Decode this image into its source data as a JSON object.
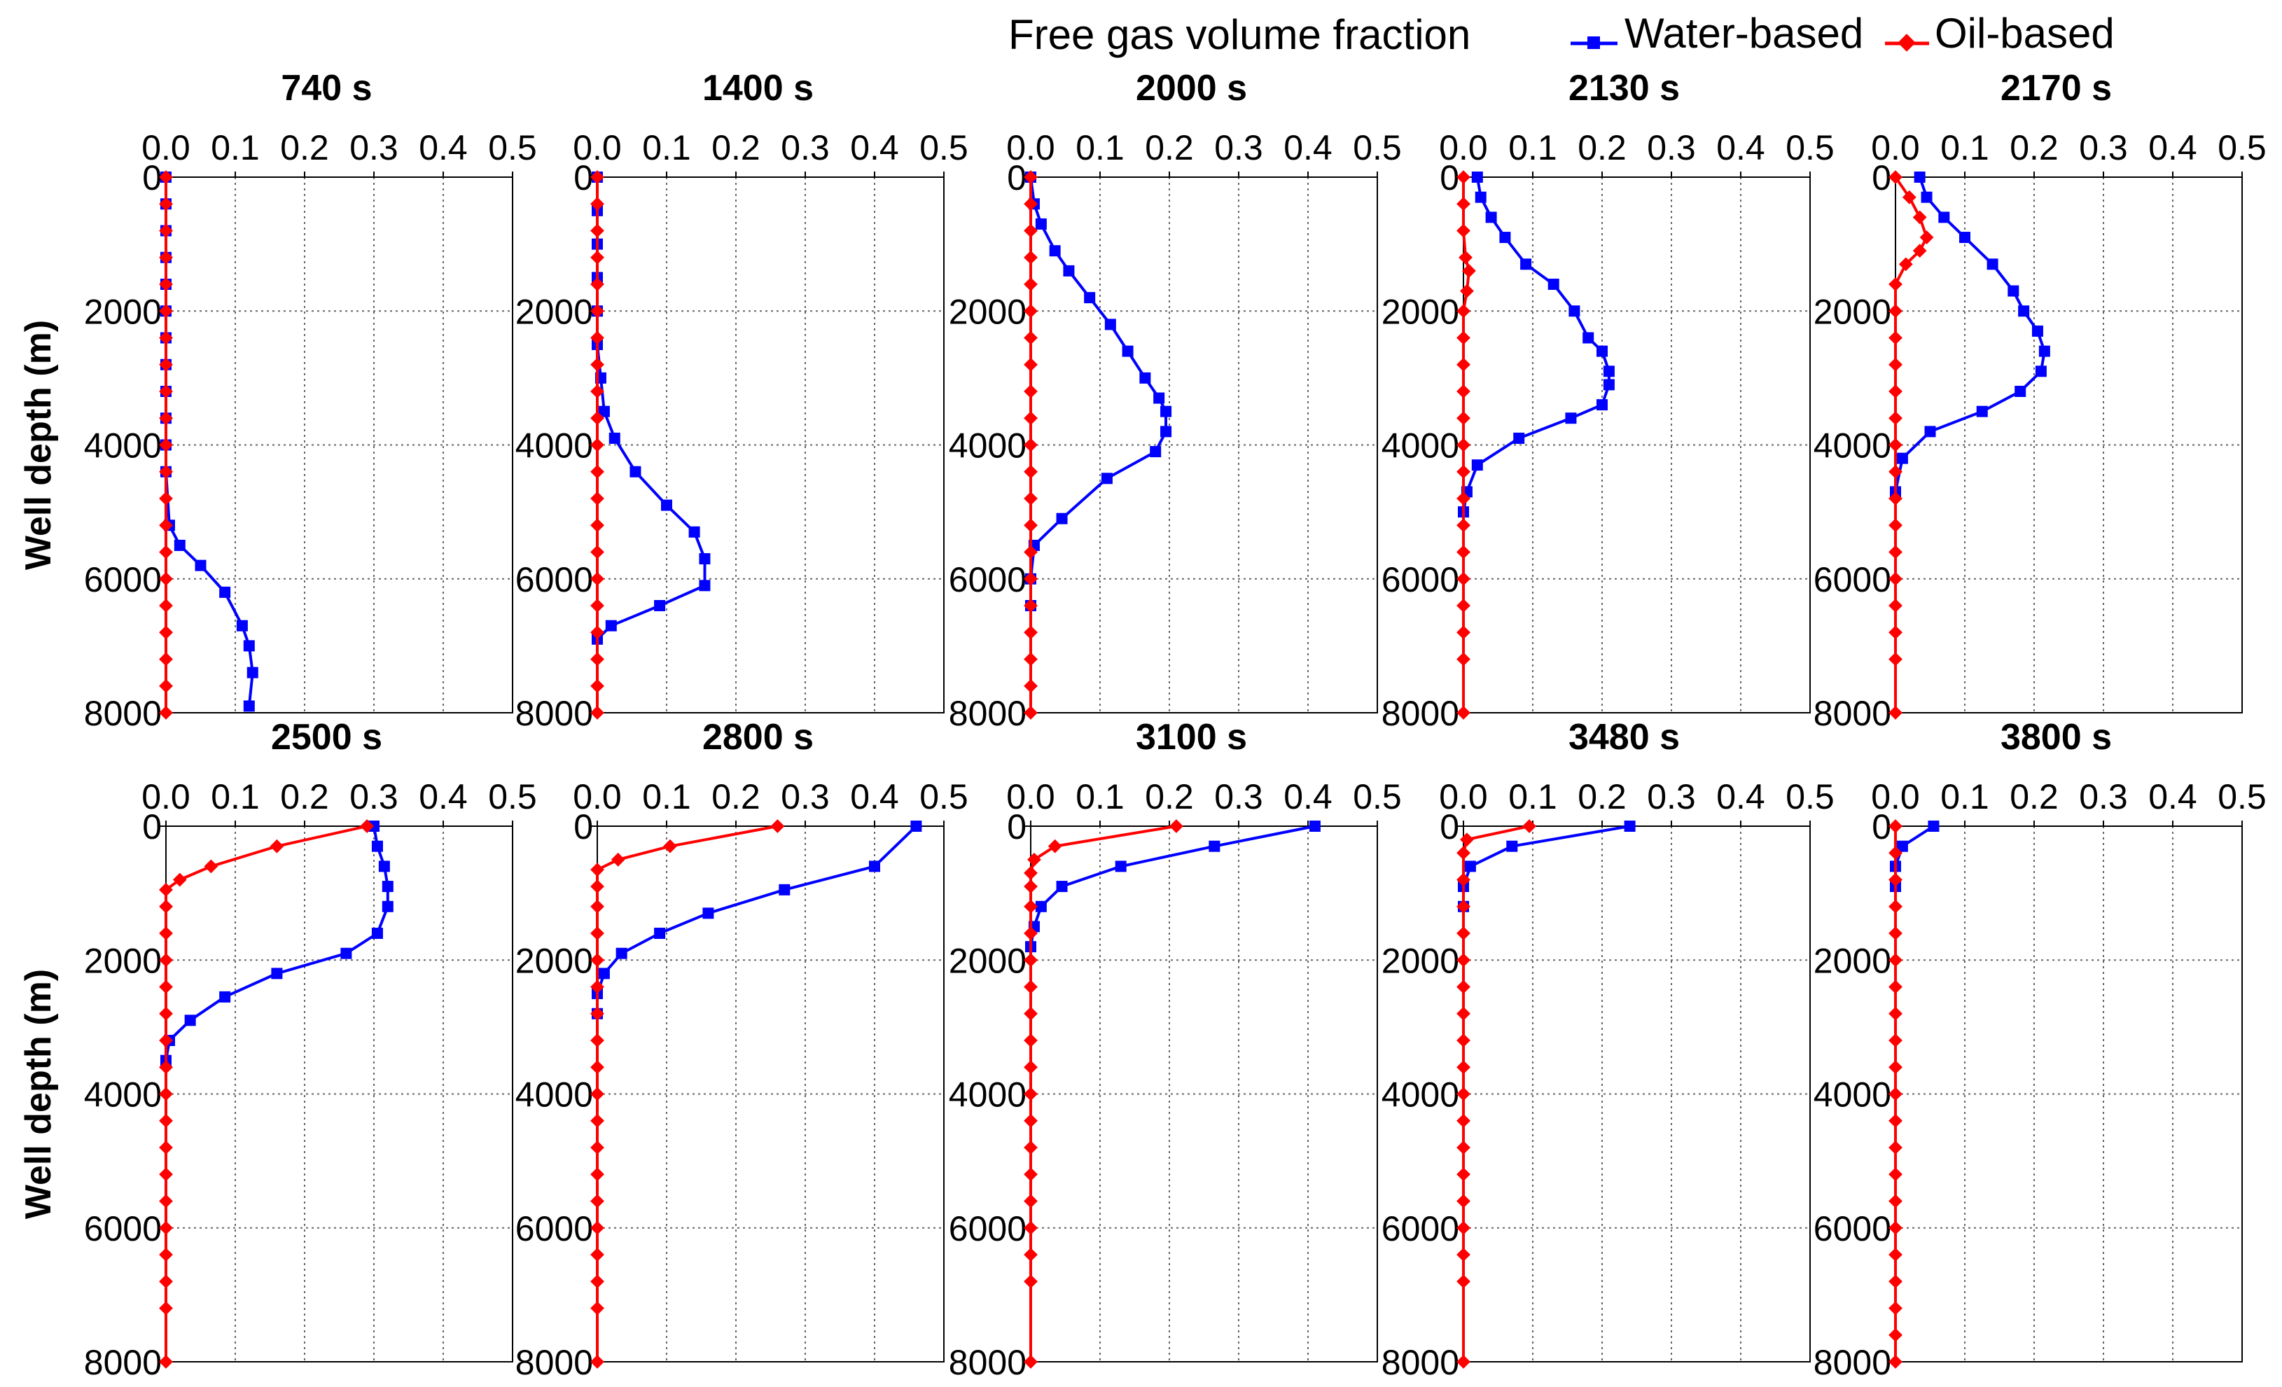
{
  "chart_data": {
    "type": "line",
    "legend": {
      "title": "Free gas volume fraction",
      "placement": "top-right",
      "entries": [
        {
          "name": "Water-based",
          "color": "#0000ff",
          "marker": "square"
        },
        {
          "name": "Oil-based",
          "color": "#ff0000",
          "marker": "diamond"
        }
      ]
    },
    "ylabel": "Well depth (m)",
    "x_axis": {
      "range": [
        0.0,
        0.5
      ],
      "ticks": [
        "0.0",
        "0.1",
        "0.2",
        "0.3",
        "0.4",
        "0.5"
      ],
      "position": "top"
    },
    "y_axis": {
      "range": [
        0,
        8000
      ],
      "inverted": true,
      "ticks": [
        "0",
        "2000",
        "4000",
        "6000",
        "8000"
      ]
    },
    "grid": true,
    "panels": [
      {
        "title": "740 s",
        "series": [
          {
            "name": "Water-based",
            "x": [
              0,
              0,
              0,
              0,
              0,
              0,
              0,
              0,
              0,
              0,
              0,
              0,
              0.005,
              0.02,
              0.05,
              0.085,
              0.11,
              0.12,
              0.125,
              0.12
            ],
            "y": [
              0,
              400,
              800,
              1200,
              1600,
              2000,
              2400,
              2800,
              3200,
              3600,
              4000,
              4400,
              5200,
              5500,
              5800,
              6200,
              6700,
              7000,
              7400,
              7900
            ]
          },
          {
            "name": "Oil-based",
            "x": [
              0,
              0,
              0,
              0,
              0,
              0,
              0,
              0,
              0,
              0,
              0,
              0,
              0,
              0,
              0,
              0,
              0,
              0,
              0,
              0,
              0
            ],
            "y": [
              0,
              400,
              800,
              1200,
              1600,
              2000,
              2400,
              2800,
              3200,
              3600,
              4000,
              4400,
              4800,
              5200,
              5600,
              6000,
              6400,
              6800,
              7200,
              7600,
              8000
            ]
          }
        ]
      },
      {
        "title": "1400 s",
        "series": [
          {
            "name": "Water-based",
            "x": [
              0,
              0,
              0,
              0,
              0,
              0,
              0.005,
              0.01,
              0.025,
              0.055,
              0.1,
              0.14,
              0.155,
              0.155,
              0.09,
              0.02,
              0
            ],
            "y": [
              0,
              500,
              1000,
              1500,
              2000,
              2500,
              3000,
              3500,
              3900,
              4400,
              4900,
              5300,
              5700,
              6100,
              6400,
              6700,
              6900
            ]
          },
          {
            "name": "Oil-based",
            "x": [
              0,
              0,
              0,
              0,
              0,
              0,
              0,
              0,
              0,
              0,
              0,
              0,
              0,
              0,
              0,
              0,
              0,
              0,
              0,
              0,
              0
            ],
            "y": [
              0,
              400,
              800,
              1200,
              1600,
              2000,
              2400,
              2800,
              3200,
              3600,
              4000,
              4400,
              4800,
              5200,
              5600,
              6000,
              6400,
              6800,
              7200,
              7600,
              8000
            ]
          }
        ]
      },
      {
        "title": "2000 s",
        "series": [
          {
            "name": "Water-based",
            "x": [
              0,
              0.005,
              0.015,
              0.035,
              0.055,
              0.085,
              0.115,
              0.14,
              0.165,
              0.185,
              0.195,
              0.195,
              0.18,
              0.11,
              0.045,
              0.005,
              0,
              0
            ],
            "y": [
              0,
              400,
              700,
              1100,
              1400,
              1800,
              2200,
              2600,
              3000,
              3300,
              3500,
              3800,
              4100,
              4500,
              5100,
              5500,
              6000,
              6400
            ]
          },
          {
            "name": "Oil-based",
            "x": [
              0,
              0,
              0,
              0,
              0,
              0,
              0,
              0,
              0,
              0,
              0,
              0,
              0,
              0,
              0,
              0,
              0,
              0,
              0,
              0,
              0
            ],
            "y": [
              0,
              400,
              800,
              1200,
              1600,
              2000,
              2400,
              2800,
              3200,
              3600,
              4000,
              4400,
              4800,
              5200,
              5600,
              6000,
              6400,
              6800,
              7200,
              7600,
              8000
            ]
          }
        ]
      },
      {
        "title": "2130 s",
        "series": [
          {
            "name": "Water-based",
            "x": [
              0.02,
              0.025,
              0.04,
              0.06,
              0.09,
              0.13,
              0.16,
              0.18,
              0.2,
              0.21,
              0.21,
              0.2,
              0.155,
              0.08,
              0.02,
              0.005,
              0
            ],
            "y": [
              0,
              300,
              600,
              900,
              1300,
              1600,
              2000,
              2400,
              2600,
              2900,
              3100,
              3400,
              3600,
              3900,
              4300,
              4700,
              5000
            ]
          },
          {
            "name": "Oil-based",
            "x": [
              0,
              0,
              0,
              0.003,
              0.008,
              0.005,
              0,
              0,
              0,
              0,
              0,
              0,
              0,
              0,
              0,
              0,
              0,
              0,
              0,
              0,
              0
            ],
            "y": [
              0,
              400,
              800,
              1200,
              1400,
              1700,
              2000,
              2400,
              2800,
              3200,
              3600,
              4000,
              4400,
              4800,
              5200,
              5600,
              6000,
              6400,
              6800,
              7200,
              8000
            ]
          }
        ]
      },
      {
        "title": "2170 s",
        "series": [
          {
            "name": "Water-based",
            "x": [
              0.035,
              0.045,
              0.07,
              0.1,
              0.14,
              0.17,
              0.185,
              0.205,
              0.215,
              0.21,
              0.18,
              0.125,
              0.05,
              0.01,
              0
            ],
            "y": [
              0,
              300,
              600,
              900,
              1300,
              1700,
              2000,
              2300,
              2600,
              2900,
              3200,
              3500,
              3800,
              4200,
              4700
            ]
          },
          {
            "name": "Oil-based",
            "x": [
              0,
              0.02,
              0.035,
              0.045,
              0.035,
              0.015,
              0,
              0,
              0,
              0,
              0,
              0,
              0,
              0,
              0,
              0,
              0,
              0,
              0,
              0,
              0,
              0
            ],
            "y": [
              0,
              300,
              600,
              900,
              1100,
              1300,
              1600,
              2000,
              2400,
              2800,
              3200,
              3600,
              4000,
              4400,
              4800,
              5200,
              5600,
              6000,
              6400,
              6800,
              7200,
              8000
            ]
          }
        ]
      },
      {
        "title": "2500 s",
        "series": [
          {
            "name": "Water-based",
            "x": [
              0.3,
              0.305,
              0.315,
              0.32,
              0.32,
              0.305,
              0.26,
              0.16,
              0.085,
              0.035,
              0.005,
              0
            ],
            "y": [
              0,
              300,
              600,
              900,
              1200,
              1600,
              1900,
              2200,
              2550,
              2900,
              3200,
              3500
            ]
          },
          {
            "name": "Oil-based",
            "x": [
              0.29,
              0.16,
              0.065,
              0.02,
              0,
              0,
              0,
              0,
              0,
              0,
              0,
              0,
              0,
              0,
              0,
              0,
              0,
              0,
              0,
              0,
              0,
              0
            ],
            "y": [
              0,
              300,
              600,
              800,
              950,
              1200,
              1600,
              2000,
              2400,
              2800,
              3200,
              3600,
              4000,
              4400,
              4800,
              5200,
              5600,
              6000,
              6400,
              6800,
              7200,
              8000
            ]
          }
        ]
      },
      {
        "title": "2800 s",
        "series": [
          {
            "name": "Water-based",
            "x": [
              0.46,
              0.4,
              0.27,
              0.16,
              0.09,
              0.035,
              0.01,
              0,
              0
            ],
            "y": [
              0,
              600,
              950,
              1300,
              1600,
              1900,
              2200,
              2500,
              2800
            ]
          },
          {
            "name": "Oil-based",
            "x": [
              0.26,
              0.105,
              0.03,
              0,
              0,
              0,
              0,
              0,
              0,
              0,
              0,
              0,
              0,
              0,
              0,
              0,
              0,
              0,
              0,
              0,
              0,
              0
            ],
            "y": [
              0,
              300,
              500,
              650,
              900,
              1200,
              1600,
              2000,
              2400,
              2800,
              3200,
              3600,
              4000,
              4400,
              4800,
              5200,
              5600,
              6000,
              6400,
              6800,
              7200,
              8000
            ]
          }
        ]
      },
      {
        "title": "3100 s",
        "series": [
          {
            "name": "Water-based",
            "x": [
              0.41,
              0.265,
              0.13,
              0.045,
              0.015,
              0.005,
              0
            ],
            "y": [
              0,
              300,
              600,
              900,
              1200,
              1500,
              1800
            ]
          },
          {
            "name": "Oil-based",
            "x": [
              0.21,
              0.035,
              0.005,
              0,
              0,
              0,
              0,
              0,
              0,
              0,
              0,
              0,
              0,
              0,
              0,
              0,
              0,
              0,
              0,
              0,
              0
            ],
            "y": [
              0,
              300,
              500,
              700,
              900,
              1200,
              1600,
              2000,
              2400,
              2800,
              3200,
              3600,
              4000,
              4400,
              4800,
              5200,
              5600,
              6000,
              6400,
              6800,
              8000
            ]
          }
        ]
      },
      {
        "title": "3480 s",
        "series": [
          {
            "name": "Water-based",
            "x": [
              0.24,
              0.07,
              0.01,
              0,
              0
            ],
            "y": [
              0,
              300,
              600,
              900,
              1200
            ]
          },
          {
            "name": "Oil-based",
            "x": [
              0.095,
              0.005,
              0,
              0,
              0,
              0,
              0,
              0,
              0,
              0,
              0,
              0,
              0,
              0,
              0,
              0,
              0,
              0,
              0,
              0
            ],
            "y": [
              0,
              200,
              400,
              800,
              1200,
              1600,
              2000,
              2400,
              2800,
              3200,
              3600,
              4000,
              4400,
              4800,
              5200,
              5600,
              6000,
              6400,
              6800,
              8000
            ]
          }
        ]
      },
      {
        "title": "3800 s",
        "series": [
          {
            "name": "Water-based",
            "x": [
              0.055,
              0.01,
              0,
              0
            ],
            "y": [
              0,
              300,
              600,
              900
            ]
          },
          {
            "name": "Oil-based",
            "x": [
              0,
              0,
              0,
              0,
              0,
              0,
              0,
              0,
              0,
              0,
              0,
              0,
              0,
              0,
              0,
              0,
              0,
              0,
              0,
              0,
              0
            ],
            "y": [
              0,
              400,
              800,
              1200,
              1600,
              2000,
              2400,
              2800,
              3200,
              3600,
              4000,
              4400,
              4800,
              5200,
              5600,
              6000,
              6400,
              6800,
              7200,
              7600,
              8000
            ]
          }
        ]
      }
    ]
  }
}
